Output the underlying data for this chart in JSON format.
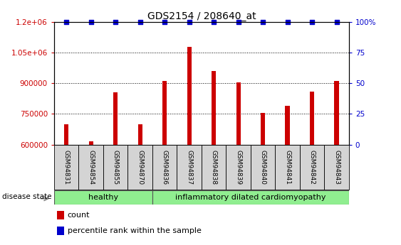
{
  "title": "GDS2154 / 208640_at",
  "samples": [
    "GSM94831",
    "GSM94854",
    "GSM94855",
    "GSM94870",
    "GSM94836",
    "GSM94837",
    "GSM94838",
    "GSM94839",
    "GSM94840",
    "GSM94841",
    "GSM94842",
    "GSM94843"
  ],
  "counts": [
    700000,
    615000,
    855000,
    700000,
    910000,
    1080000,
    960000,
    905000,
    755000,
    790000,
    860000,
    910000
  ],
  "percentile_ranks": [
    100,
    100,
    100,
    100,
    100,
    100,
    100,
    100,
    100,
    100,
    100,
    100
  ],
  "group_colors": [
    "#90ee90",
    "#90ee90"
  ],
  "bar_color": "#cc0000",
  "dot_color": "#0000cc",
  "ylim_left": [
    600000,
    1200000
  ],
  "ylim_right": [
    0,
    100
  ],
  "yticks_left": [
    600000,
    750000,
    900000,
    1050000,
    1200000
  ],
  "ytick_labels_left": [
    "600000",
    "750000",
    "900000",
    "1.05e+06",
    "1.2e+06"
  ],
  "yticks_right": [
    0,
    25,
    50,
    75,
    100
  ],
  "ytick_labels_right": [
    "0",
    "25",
    "50",
    "75",
    "100%"
  ],
  "healthy_count": 4,
  "idc_count": 8,
  "label_count": "count",
  "label_percentile": "percentile rank within the sample",
  "disease_state_label": "disease state",
  "title_str": "GDS2154 / 208640_at",
  "plot_bg": "#e8e8e8",
  "label_area_bg": "#d0d0d0"
}
